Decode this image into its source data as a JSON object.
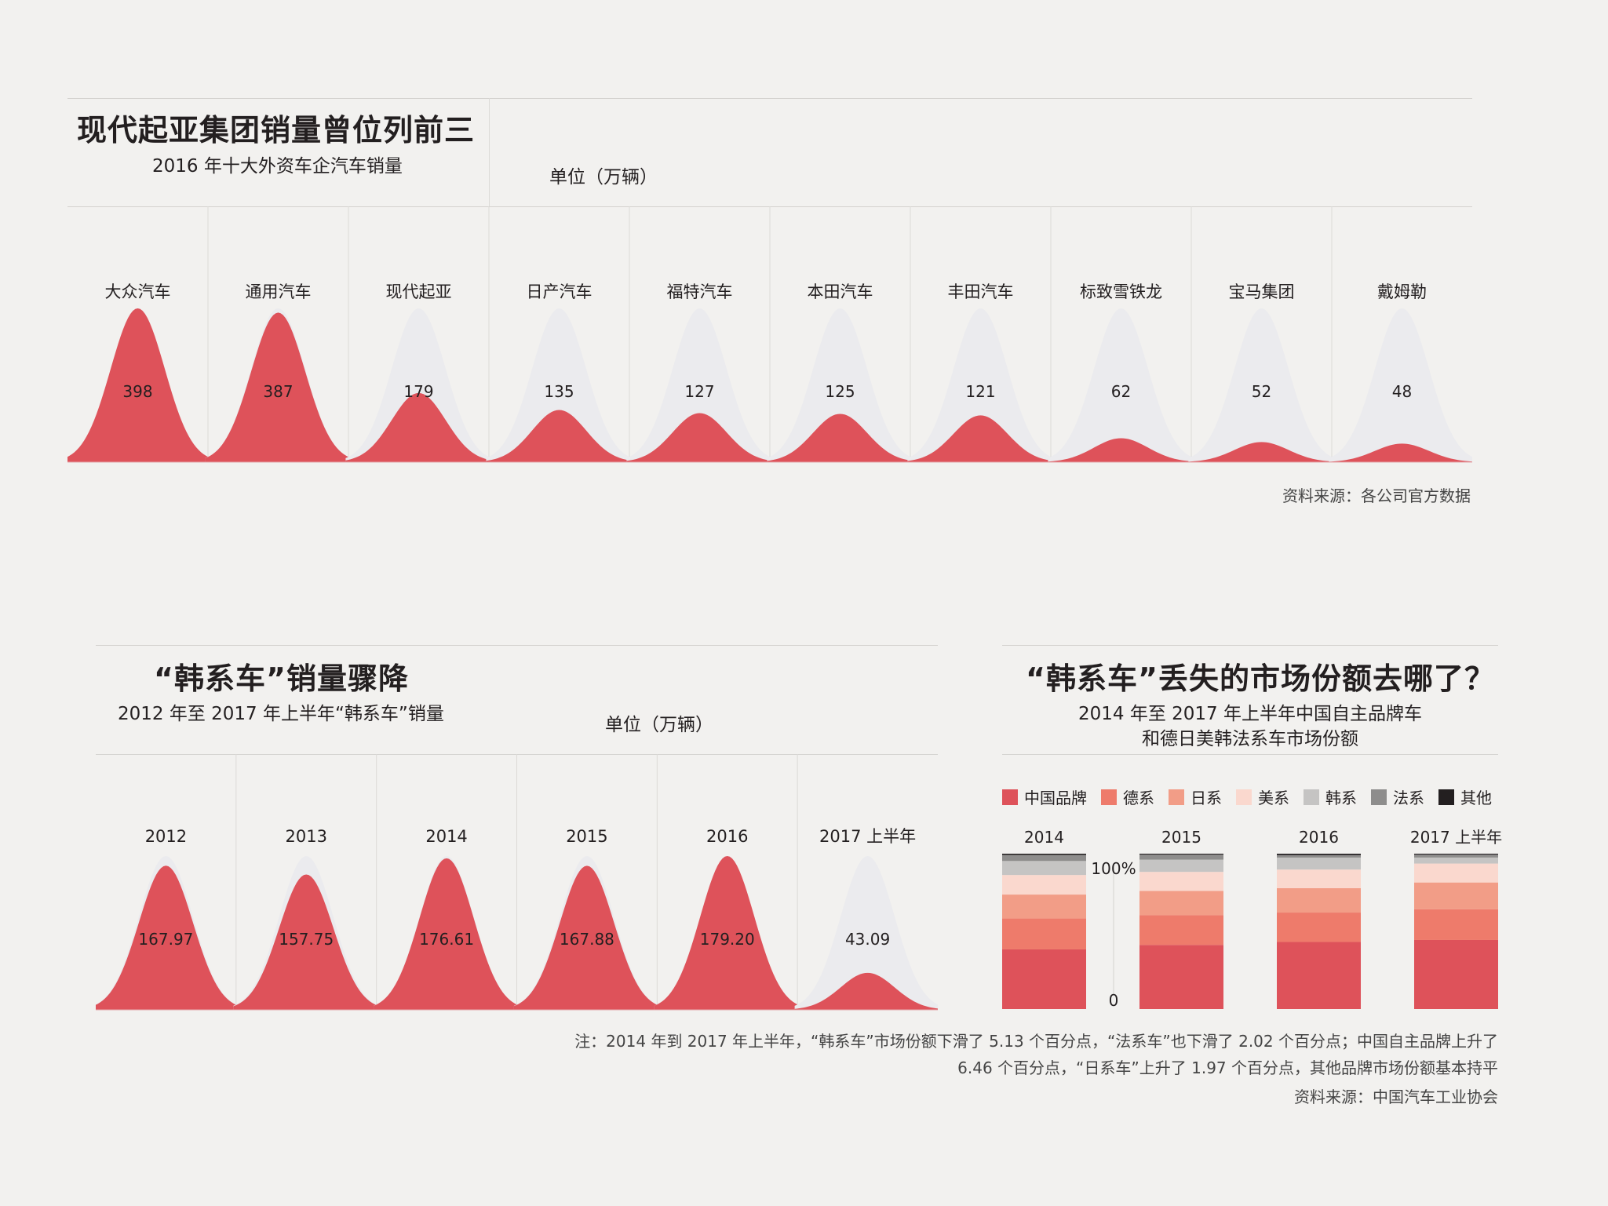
{
  "chart1": {
    "title": "现代起亚集团销量曾位列前三",
    "subtitle": "2016 年十大外资车企汽车销量",
    "unit": "单位（万辆）",
    "source": "资料来源：各公司官方数据"
  },
  "chart2": {
    "title": "“韩系车”销量骤降",
    "subtitle": "2012 年至 2017 年上半年“韩系车”销量",
    "unit": "单位（万辆）"
  },
  "chart3": {
    "title": "“韩系车”丢失的市场份额去哪了？",
    "subtitle_line1": "2014 年至 2017 年上半年中国自主品牌车",
    "subtitle_line2": "和德日美韩法系车市场份额",
    "axis_top": "100%",
    "axis_bottom": "0",
    "note_line1": "注：2014 年到 2017 年上半年，“韩系车”市场份额下滑了 5.13 个百分点，“法系车”也下滑了 2.02 个百分点；中国自主品牌上升了",
    "note_line2": "6.46 个百分点，“日系车”上升了 1.97 个百分点，其他品牌市场份额基本持平",
    "source": "资料来源：中国汽车工业协会"
  },
  "colors": {
    "red": "#de525a",
    "ghost": "#ebebee",
    "china": "#de525a",
    "german": "#ee7b6b",
    "japan": "#f29d87",
    "us": "#fad8ce",
    "korea": "#c5c4c3",
    "france": "#8e8d8c",
    "other": "#231f20"
  },
  "chart_data": [
    {
      "type": "area",
      "categories": [
        "大众汽车",
        "通用汽车",
        "现代起亚",
        "日产汽车",
        "福特汽车",
        "本田汽车",
        "丰田汽车",
        "标致雪铁龙",
        "宝马集团",
        "戴姆勒"
      ],
      "values": [
        398,
        387,
        179,
        135,
        127,
        125,
        121,
        62,
        52,
        48
      ],
      "labels": [
        "398",
        "387",
        "179",
        "135",
        "127",
        "125",
        "121",
        "62",
        "52",
        "48"
      ],
      "max": 398
    },
    {
      "type": "area",
      "categories": [
        "2012",
        "2013",
        "2014",
        "2015",
        "2016",
        "2017 上半年"
      ],
      "values": [
        167.97,
        157.75,
        176.61,
        167.88,
        179.2,
        43.09
      ],
      "labels": [
        "167.97",
        "157.75",
        "176.61",
        "167.88",
        "179.20",
        "43.09"
      ],
      "max": 179.2
    },
    {
      "type": "bar",
      "stacked": true,
      "categories": [
        "2014",
        "2015",
        "2016",
        "2017 上半年"
      ],
      "series": [
        {
          "name": "中国品牌",
          "color": "#de525a",
          "values": [
            38.4,
            41.3,
            43.2,
            44.9
          ]
        },
        {
          "name": "德系",
          "color": "#ee7b6b",
          "values": [
            19.9,
            19.2,
            18.9,
            20.0
          ]
        },
        {
          "name": "日系",
          "color": "#f29d87",
          "values": [
            15.4,
            15.5,
            15.7,
            17.4
          ]
        },
        {
          "name": "美系",
          "color": "#fad8ce",
          "values": [
            12.6,
            12.3,
            12.0,
            12.3
          ]
        },
        {
          "name": "韩系",
          "color": "#c5c4c3",
          "values": [
            9.0,
            7.9,
            7.7,
            3.9
          ]
        },
        {
          "name": "法系",
          "color": "#8e8d8c",
          "values": [
            3.9,
            3.2,
            1.6,
            1.9
          ]
        },
        {
          "name": "其他",
          "color": "#231f20",
          "values": [
            0.8,
            0.6,
            0.9,
            0.6
          ]
        }
      ],
      "ylim": [
        0,
        100
      ]
    }
  ]
}
